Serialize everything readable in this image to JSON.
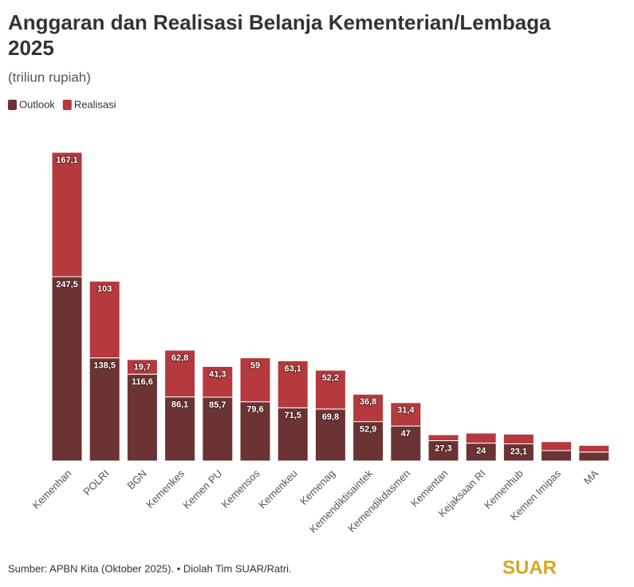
{
  "chart_data": {
    "type": "stacked_bar",
    "title_lines": [
      "Anggaran dan Realisasi Belanja Kementerian/Lembaga",
      "2025"
    ],
    "subtitle": "(triliun rupiah)",
    "categories": [
      "Kemenhan",
      "POLRI",
      "BGN",
      "Kemenkes",
      "Kemen PU",
      "Kemensos",
      "Kemenkeu",
      "Kemenag",
      "Kemendiktisaintek",
      "Kemendikdasmen",
      "Kementan",
      "Kejaksaan RI",
      "Kemenhub",
      "Kemen Imipas",
      "MA"
    ],
    "series": [
      {
        "name": "Outlook",
        "color": "#6b3333",
        "values": [
          247.5,
          138.5,
          116.6,
          86.1,
          85.7,
          79.6,
          71.5,
          69.8,
          52.9,
          47,
          27.3,
          24,
          23.1,
          14,
          12
        ],
        "value_labels": [
          "247,5",
          "138,5",
          "116,6",
          "86,1",
          "85,7",
          "79,6",
          "71,5",
          "69,8",
          "52,9",
          "47",
          "27,3",
          "24",
          "23,1",
          null,
          null
        ]
      },
      {
        "name": "Realisasi",
        "color": "#b5393d",
        "values": [
          167.1,
          103,
          19.7,
          62.8,
          41.3,
          59,
          63.1,
          52.2,
          36.8,
          31.4,
          8,
          13.5,
          13,
          12,
          9
        ],
        "value_labels": [
          "167,1",
          "103",
          "19,7",
          "62,8",
          "41,3",
          "59",
          "63,1",
          "52,2",
          "36,8",
          "31,4",
          null,
          null,
          null,
          null,
          null
        ]
      }
    ],
    "source": "Sumber: APBN Kita (Oktober 2025). • Diolah Tim SUAR/Ratri.",
    "logo": "SUAR"
  }
}
